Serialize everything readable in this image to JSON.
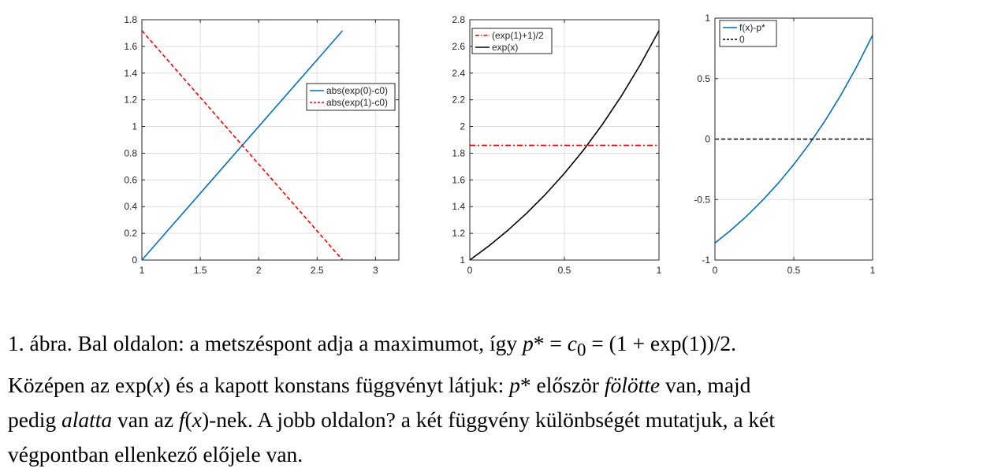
{
  "chart_data": [
    {
      "type": "line",
      "xlim": [
        1,
        3.2
      ],
      "ylim": [
        0,
        1.8
      ],
      "xticks": [
        "1",
        "1.5",
        "2",
        "2.5",
        "3"
      ],
      "yticks": [
        "0",
        "0.2",
        "0.4",
        "0.6",
        "0.8",
        "1",
        "1.2",
        "1.4",
        "1.6",
        "1.8"
      ],
      "grid": true,
      "legend_position": "upper-right",
      "series": [
        {
          "name": "abs(exp(0)-c0)",
          "color": "#0072BD",
          "style": "solid",
          "x": [
            1,
            2.718
          ],
          "y": [
            0,
            1.718
          ]
        },
        {
          "name": "abs(exp(1)-c0)",
          "color": "#FF0000",
          "style": "dashed",
          "x": [
            1,
            2.718
          ],
          "y": [
            1.718,
            0
          ]
        }
      ]
    },
    {
      "type": "line",
      "xlim": [
        0,
        1
      ],
      "ylim": [
        1,
        2.8
      ],
      "xticks": [
        "0",
        "0.5",
        "1"
      ],
      "yticks": [
        "1",
        "1.2",
        "1.4",
        "1.6",
        "1.8",
        "2",
        "2.2",
        "2.4",
        "2.6",
        "2.8"
      ],
      "grid": true,
      "legend_position": "upper-left",
      "series": [
        {
          "name": "(exp(1)+1)/2",
          "color": "#FF0000",
          "style": "dashdot",
          "x": [
            0,
            1
          ],
          "y": [
            1.859,
            1.859
          ]
        },
        {
          "name": "exp(x)",
          "color": "#000000",
          "style": "solid",
          "x": [
            0,
            0.1,
            0.2,
            0.3,
            0.4,
            0.5,
            0.6,
            0.7,
            0.8,
            0.9,
            1.0
          ],
          "y": [
            1.0,
            1.105,
            1.221,
            1.35,
            1.492,
            1.649,
            1.822,
            2.014,
            2.226,
            2.46,
            2.718
          ]
        }
      ]
    },
    {
      "type": "line",
      "xlim": [
        0,
        1
      ],
      "ylim": [
        -1,
        1
      ],
      "xticks": [
        "0",
        "0.5",
        "1"
      ],
      "yticks": [
        "-1",
        "-0.5",
        "0",
        "0.5",
        "1"
      ],
      "grid": true,
      "legend_position": "upper-left",
      "series": [
        {
          "name": "f(x)-p*",
          "color": "#0072BD",
          "style": "solid",
          "x": [
            0,
            0.1,
            0.2,
            0.3,
            0.4,
            0.5,
            0.6,
            0.7,
            0.8,
            0.9,
            1.0
          ],
          "y": [
            -0.859,
            -0.754,
            -0.638,
            -0.509,
            -0.367,
            -0.21,
            -0.037,
            0.155,
            0.367,
            0.601,
            0.859
          ]
        },
        {
          "name": "0",
          "color": "#000000",
          "style": "dashed",
          "x": [
            0,
            1
          ],
          "y": [
            0,
            0
          ]
        }
      ]
    }
  ],
  "caption": {
    "line1": [
      "1. ábra. Bal oldalon: a metszéspont adja a maximumot, így ",
      "p",
      "* = ",
      "c",
      "0",
      " = (1 + exp(1))/2."
    ],
    "line2": [
      "Középen az exp(",
      "x",
      ") és a kapott konstans függvényt látjuk: ",
      "p",
      "* először ",
      "fölötte",
      " van, majd"
    ],
    "line3": [
      "pedig ",
      "alatta",
      " van az ",
      "f",
      "(",
      "x",
      ")-nek. A jobb oldalon? a két függvény különbségét mutatjuk, a két"
    ],
    "line4": "végpontban ellenkező előjele van."
  }
}
